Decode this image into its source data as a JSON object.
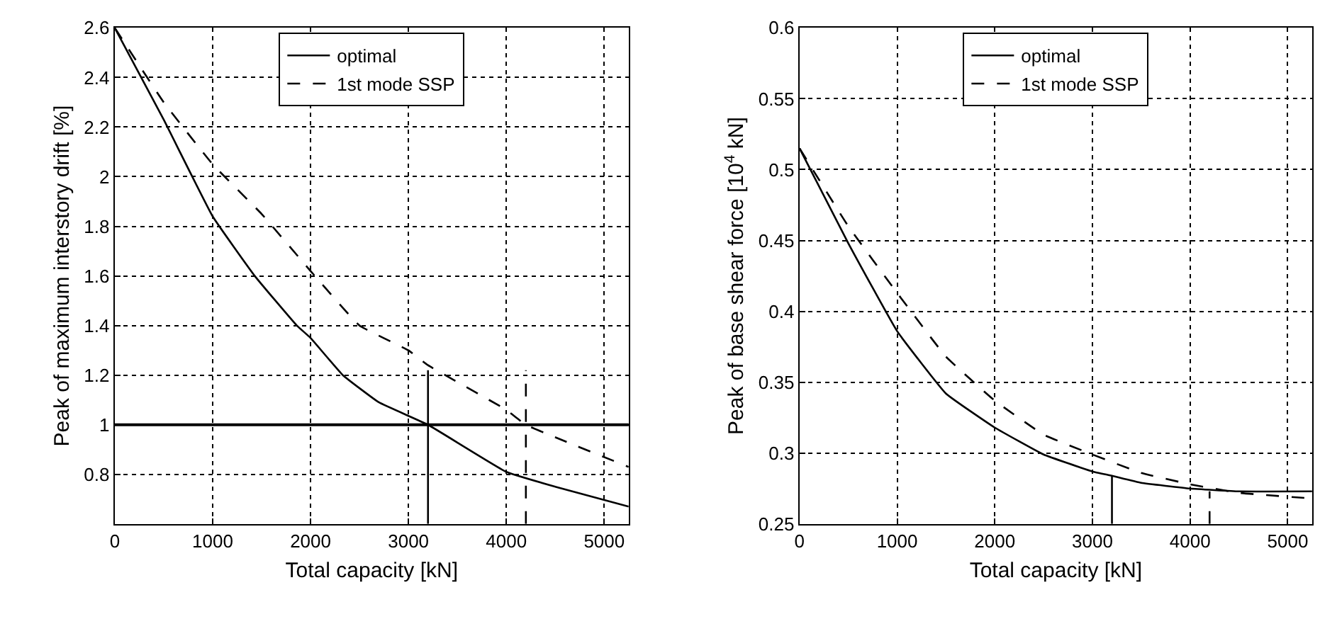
{
  "chart_data": [
    {
      "type": "line",
      "xlabel": "Total capacity [kN]",
      "ylabel": "Peak of maximum interstory drift [%]",
      "xlim": [
        0,
        5250
      ],
      "xticks": [
        0,
        1000,
        2000,
        3000,
        4000,
        5000
      ],
      "ylim": [
        0.6,
        2.6
      ],
      "yticks": [
        {
          "value": 0.6,
          "label": null
        },
        0.8,
        1,
        1.2,
        1.4,
        1.6,
        1.8,
        2,
        2.2,
        2.4,
        2.6
      ],
      "grid": true,
      "legend": "top",
      "marker": "none",
      "series": [
        {
          "name": "optimal",
          "color": "#000000",
          "line_style": "solid",
          "x": [
            0,
            500,
            1000,
            1430,
            1860,
            2000,
            2330,
            2700,
            3200,
            4000,
            4500,
            5250
          ],
          "values": [
            2.6,
            2.23,
            1.84,
            1.6,
            1.4,
            1.35,
            1.2,
            1.09,
            1.0,
            0.81,
            0.75,
            0.67
          ]
        },
        {
          "name": "1st mode SSP",
          "color": "#000000",
          "line_style": "dashed",
          "x": [
            0,
            500,
            1000,
            1500,
            2000,
            2500,
            3000,
            3200,
            4000,
            4200,
            5250
          ],
          "values": [
            2.6,
            2.3,
            2.05,
            1.85,
            1.62,
            1.4,
            1.3,
            1.24,
            1.06,
            1.0,
            0.83
          ]
        },
        {
          "color": "#000000",
          "line_style": "solid",
          "x": [
            3200,
            3200
          ],
          "values": [
            0.6,
            1.22
          ]
        },
        {
          "color": "#000000",
          "line_style": "dashed",
          "x": [
            4200,
            4200
          ],
          "values": [
            0.6,
            1.22
          ]
        }
      ],
      "ref_lines": [
        {
          "axis": "y",
          "value": 1,
          "color": "#000000",
          "line_style": "solid"
        }
      ]
    },
    {
      "type": "line",
      "xlabel": "Total capacity [kN]",
      "ylabel": "Peak of base shear force [10$^{4}$ kN]",
      "xlim": [
        0,
        5250
      ],
      "xticks": [
        0,
        1000,
        2000,
        3000,
        4000,
        5000
      ],
      "ylim": [
        0.25,
        0.6
      ],
      "yticks": [
        0.25,
        0.3,
        0.35,
        0.4,
        0.45,
        0.5,
        0.55,
        0.6
      ],
      "grid": true,
      "legend": "top",
      "marker": "none",
      "series": [
        {
          "name": "optimal",
          "color": "#000000",
          "line_style": "solid",
          "x": [
            0,
            500,
            1000,
            1500,
            2000,
            2500,
            3000,
            3200,
            3500,
            4000,
            4500,
            5250
          ],
          "values": [
            0.515,
            0.448,
            0.386,
            0.342,
            0.318,
            0.299,
            0.287,
            0.284,
            0.279,
            0.275,
            0.273,
            0.273
          ]
        },
        {
          "name": "1st mode SSP",
          "color": "#000000",
          "line_style": "dashed",
          "x": [
            0,
            500,
            1000,
            1500,
            2000,
            2500,
            3000,
            3500,
            4000,
            4500,
            5250
          ],
          "values": [
            0.515,
            0.46,
            0.413,
            0.368,
            0.337,
            0.313,
            0.299,
            0.286,
            0.278,
            0.272,
            0.268
          ]
        },
        {
          "color": "#000000",
          "line_style": "solid",
          "x": [
            3200,
            3200
          ],
          "values": [
            0.25,
            0.284
          ]
        },
        {
          "color": "#000000",
          "line_style": "dashed",
          "x": [
            4200,
            4200
          ],
          "values": [
            0.25,
            0.273
          ]
        }
      ]
    }
  ]
}
